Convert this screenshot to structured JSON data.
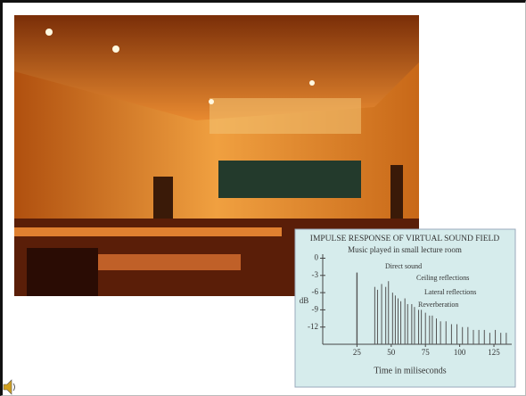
{
  "chart_data": {
    "type": "impulse",
    "title": "IMPULSE RESPONSE OF VIRTUAL SOUND FIELD",
    "subtitle": "Music played in small lecture room",
    "ylabel": "dB",
    "xlabel": "Time in miliseconds",
    "annotations": [
      "Direct sound",
      "Ceiling reflections",
      "Lateral reflections",
      "Reverberation"
    ],
    "x": [
      25,
      38,
      40,
      43,
      46,
      48,
      51,
      53,
      55,
      57,
      60,
      62,
      65,
      67,
      70,
      72,
      75,
      78,
      80,
      83,
      86,
      90,
      94,
      98,
      102,
      106,
      110,
      114,
      118,
      122,
      126,
      130,
      134
    ],
    "values": [
      -2.5,
      -5,
      -5.5,
      -4.5,
      -5,
      -4,
      -6,
      -6.5,
      -7,
      -7.5,
      -7,
      -8,
      -8,
      -8.5,
      -9,
      -9,
      -9.5,
      -10,
      -10,
      -10.5,
      -11,
      -11,
      -11.5,
      -11.5,
      -12,
      -12,
      -12.5,
      -12.5,
      -12.5,
      -13,
      -12.5,
      -13,
      -13
    ],
    "color": "#555555",
    "xlim": [
      0,
      138
    ],
    "xticks": [
      25,
      50,
      75,
      100,
      125
    ],
    "ylim": [
      -15,
      0.7
    ],
    "yticks": [
      0,
      -3,
      -6,
      -9,
      -12
    ]
  }
}
